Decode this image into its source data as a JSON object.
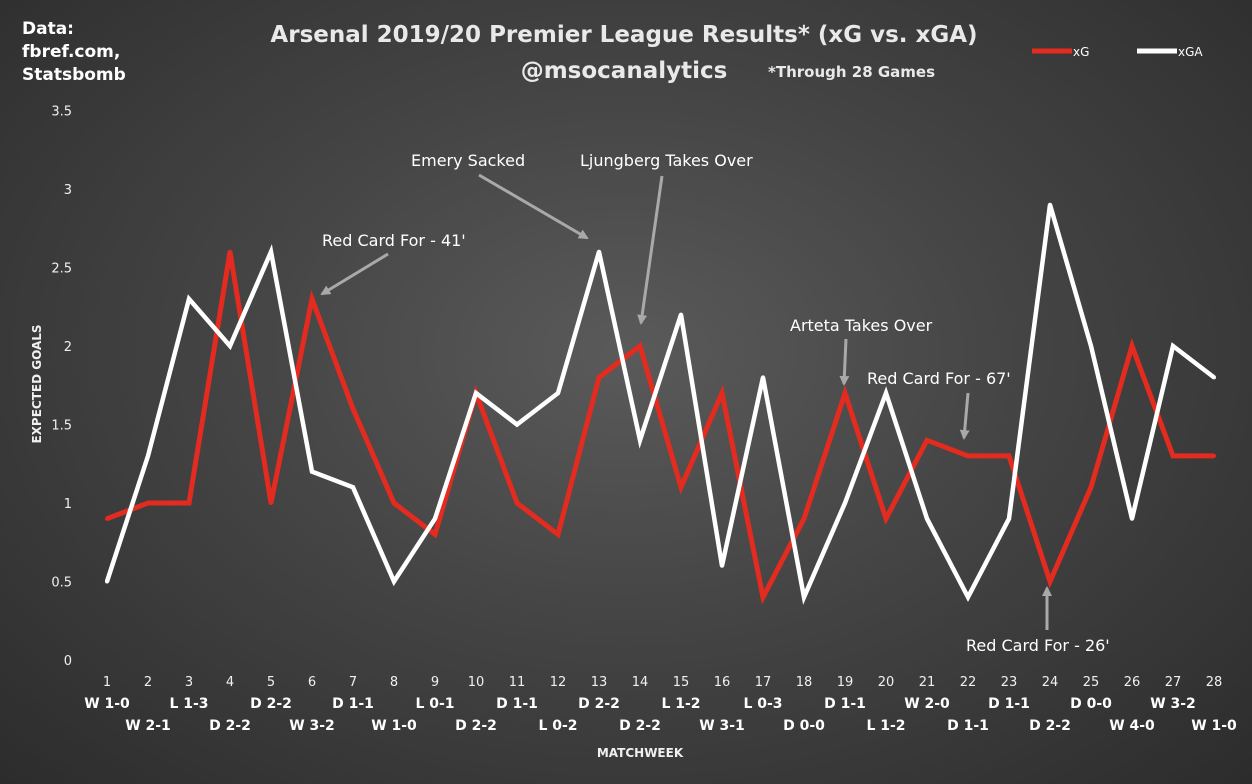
{
  "source": {
    "line1": "Data:",
    "line2": "fbref.com,",
    "line3": "Statsbomb"
  },
  "title": "Arsenal 2019/20 Premier League Results* (xG vs. xGA)",
  "subtitle": "@msocanalytics",
  "note": "*Through 28 Games",
  "chart_data": {
    "type": "line",
    "title": "Arsenal 2019/20 Premier League Results* (xG vs. xGA)",
    "xlabel": "MATCHWEEK",
    "ylabel": "EXPECTED GOALS",
    "ylim": [
      0,
      3.5
    ],
    "yticks": [
      "0",
      "0.5",
      "1",
      "1.5",
      "2",
      "2.5",
      "3",
      "3.5"
    ],
    "grid": false,
    "legend": "top-right",
    "x": [
      1,
      2,
      3,
      4,
      5,
      6,
      7,
      8,
      9,
      10,
      11,
      12,
      13,
      14,
      15,
      16,
      17,
      18,
      19,
      20,
      21,
      22,
      23,
      24,
      25,
      26,
      27,
      28
    ],
    "results": [
      "W 1-0",
      "W 2-1",
      "L 1-3",
      "D 2-2",
      "D 2-2",
      "W 3-2",
      "D 1-1",
      "W 1-0",
      "L 0-1",
      "D 2-2",
      "D 1-1",
      "L 0-2",
      "D 2-2",
      "D 2-2",
      "L 1-2",
      "W 3-1",
      "L 0-3",
      "D 0-0",
      "D 1-1",
      "L 1-2",
      "W 2-0",
      "D 1-1",
      "D 1-1",
      "D 2-2",
      "D 0-0",
      "W 4-0",
      "W 3-2",
      "W 1-0"
    ],
    "series": [
      {
        "name": "xG",
        "color": "#e32b1f",
        "values": [
          0.9,
          1.0,
          1.0,
          2.6,
          1.0,
          2.3,
          1.6,
          1.0,
          0.8,
          1.7,
          1.0,
          0.8,
          1.8,
          2.0,
          1.1,
          1.7,
          0.4,
          0.9,
          1.7,
          0.9,
          1.4,
          1.3,
          1.3,
          0.5,
          1.1,
          2.0,
          1.3,
          1.3
        ]
      },
      {
        "name": "xGA",
        "color": "#ffffff",
        "values": [
          0.5,
          1.3,
          2.3,
          2.0,
          2.6,
          1.2,
          1.1,
          0.5,
          0.9,
          1.7,
          1.5,
          1.7,
          2.6,
          1.4,
          2.2,
          0.6,
          1.8,
          0.4,
          1.0,
          1.7,
          0.9,
          0.4,
          0.9,
          2.9,
          2.0,
          0.9,
          2.0,
          1.8
        ]
      }
    ],
    "annotations": [
      "Red Card For -  41'",
      "Emery Sacked",
      "Ljungberg Takes Over",
      "Arteta Takes Over",
      "Red Card For - 67'",
      "Red Card For -  26'"
    ]
  }
}
